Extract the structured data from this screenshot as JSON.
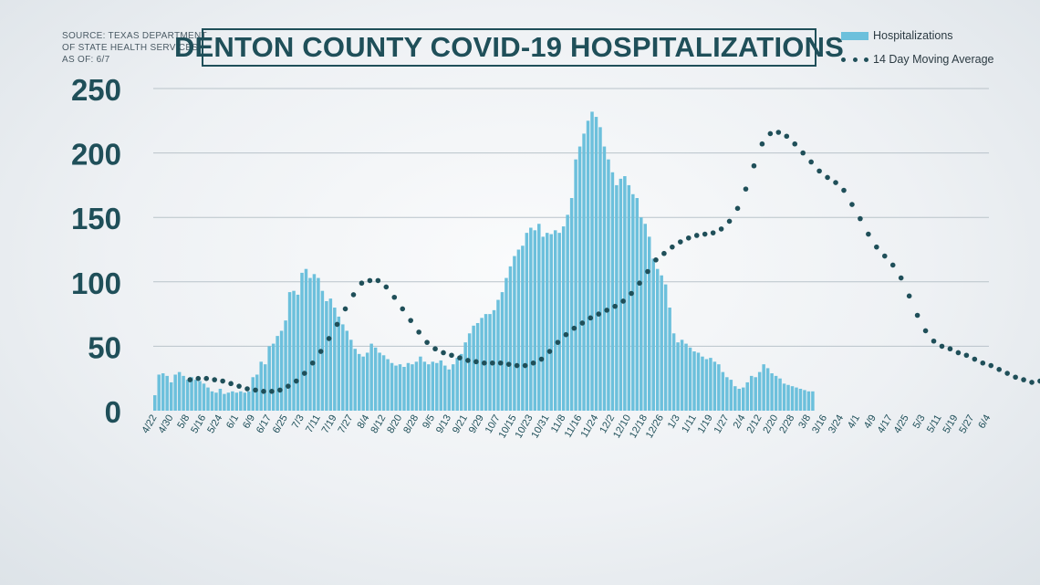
{
  "source_lines": [
    "SOURCE: TEXAS DEPARTMENT",
    "OF STATE HEALTH SERVICES",
    "AS OF: 6/7"
  ],
  "legend": {
    "bars": "Hospitalizations",
    "dots": "14 Day Moving Average"
  },
  "colors": {
    "bars": "#6cc0dc",
    "dots": "#1f4f59",
    "title": "#1f4f59",
    "axis_text": "#1f4f59"
  },
  "chart_data": {
    "type": "bar",
    "title": "DENTON COUNTY COVID-19 HOSPITALIZATIONS",
    "xlabel": "",
    "ylabel": "",
    "ylim": [
      0,
      250
    ],
    "yticks": [
      0,
      50,
      100,
      150,
      200,
      250
    ],
    "grid": true,
    "legend_position": "top-right",
    "x_tick_labels": [
      "4/22",
      "4/30",
      "5/8",
      "5/16",
      "5/24",
      "6/1",
      "6/9",
      "6/17",
      "6/25",
      "7/3",
      "7/11",
      "7/19",
      "7/27",
      "8/4",
      "8/12",
      "8/20",
      "8/28",
      "9/5",
      "9/13",
      "9/21",
      "9/29",
      "10/7",
      "10/15",
      "10/23",
      "10/31",
      "11/8",
      "11/16",
      "11/24",
      "12/2",
      "12/10",
      "12/18",
      "12/26",
      "1/3",
      "1/11",
      "1/19",
      "1/27",
      "2/4",
      "2/12",
      "2/20",
      "2/28",
      "3/8",
      "3/16",
      "3/24",
      "4/1",
      "4/9",
      "4/17",
      "4/25",
      "5/3",
      "5/11",
      "5/19",
      "5/27",
      "6/4"
    ],
    "series": [
      {
        "name": "Hospitalizations",
        "kind": "bar",
        "interval_days": 2,
        "start": "4/22",
        "values": [
          12,
          28,
          29,
          27,
          22,
          28,
          30,
          27,
          24,
          26,
          24,
          23,
          21,
          18,
          15,
          14,
          17,
          13,
          14,
          15,
          14,
          15,
          14,
          15,
          26,
          28,
          38,
          36,
          50,
          52,
          58,
          62,
          70,
          92,
          93,
          90,
          107,
          110,
          103,
          106,
          103,
          93,
          85,
          87,
          80,
          73,
          67,
          62,
          55,
          48,
          44,
          42,
          45,
          52,
          49,
          45,
          43,
          40,
          37,
          35,
          36,
          34,
          37,
          36,
          38,
          42,
          38,
          36,
          38,
          37,
          39,
          35,
          32,
          36,
          41,
          44,
          53,
          60,
          66,
          68,
          72,
          75,
          75,
          78,
          86,
          92,
          103,
          112,
          120,
          125,
          128,
          138,
          142,
          140,
          145,
          135,
          138,
          137,
          140,
          138,
          143,
          152,
          165,
          195,
          205,
          215,
          225,
          232,
          228,
          220,
          205,
          195,
          185,
          175,
          180,
          182,
          175,
          168,
          165,
          150,
          145,
          135,
          118,
          110,
          105,
          98,
          80,
          60,
          53,
          55,
          52,
          49,
          46,
          45,
          42,
          40,
          41,
          38,
          36,
          30,
          26,
          24,
          19,
          17,
          18,
          22,
          27,
          26,
          30,
          36,
          33,
          29,
          27,
          25,
          21,
          20,
          19,
          18,
          17,
          16,
          15,
          15
        ]
      },
      {
        "name": "14 Day Moving Average",
        "kind": "dots",
        "interval_days": 4,
        "start": "5/10",
        "values": [
          24,
          25,
          25,
          24,
          23,
          21,
          19,
          17,
          16,
          15,
          15,
          16,
          19,
          23,
          29,
          37,
          46,
          56,
          67,
          79,
          90,
          99,
          101,
          101,
          96,
          88,
          79,
          70,
          61,
          53,
          48,
          45,
          43,
          41,
          39,
          38,
          37,
          37,
          37,
          36,
          35,
          35,
          37,
          40,
          46,
          53,
          59,
          64,
          68,
          72,
          75,
          78,
          81,
          85,
          91,
          99,
          108,
          117,
          122,
          127,
          131,
          134,
          136,
          137,
          138,
          141,
          147,
          157,
          172,
          190,
          207,
          215,
          216,
          213,
          207,
          200,
          193,
          186,
          181,
          177,
          171,
          160,
          149,
          137,
          127,
          120,
          113,
          103,
          89,
          74,
          62,
          54,
          50,
          48,
          45,
          43,
          40,
          37,
          35,
          32,
          29,
          26,
          24,
          22,
          23,
          24,
          26,
          28,
          29,
          28,
          27,
          25,
          23,
          21,
          19,
          17
        ]
      }
    ]
  }
}
